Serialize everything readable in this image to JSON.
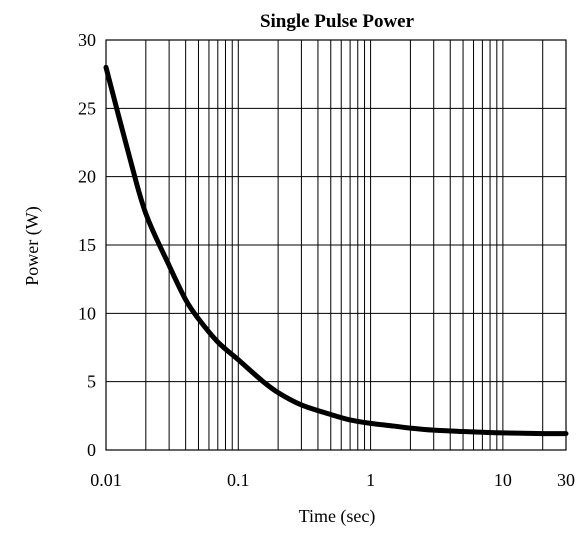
{
  "chart_data": {
    "type": "line",
    "title": "Single Pulse Power",
    "xlabel": "Time (sec)",
    "ylabel": "Power  (W)",
    "xscale": "log",
    "xlim": [
      0.01,
      30
    ],
    "ylim": [
      0,
      30
    ],
    "grid": true,
    "x_ticks": [
      {
        "value": 0.01,
        "label": "0.01"
      },
      {
        "value": 0.1,
        "label": "0.1"
      },
      {
        "value": 1,
        "label": "1"
      },
      {
        "value": 10,
        "label": "10"
      },
      {
        "value": 30,
        "label": "30"
      }
    ],
    "y_ticks": [
      {
        "value": 0,
        "label": "0"
      },
      {
        "value": 5,
        "label": "5"
      },
      {
        "value": 10,
        "label": "10"
      },
      {
        "value": 15,
        "label": "15"
      },
      {
        "value": 20,
        "label": "20"
      },
      {
        "value": 25,
        "label": "25"
      },
      {
        "value": 30,
        "label": "30"
      }
    ],
    "series": [
      {
        "x": [
          0.01,
          0.015,
          0.02,
          0.03,
          0.04,
          0.05,
          0.07,
          0.1,
          0.15,
          0.2,
          0.3,
          0.5,
          0.7,
          1,
          1.5,
          2,
          3,
          5,
          7,
          10,
          20,
          30
        ],
        "y": [
          28,
          21.5,
          17.3,
          13.5,
          11,
          9.6,
          7.9,
          6.6,
          5.1,
          4.2,
          3.3,
          2.6,
          2.2,
          1.95,
          1.75,
          1.6,
          1.45,
          1.35,
          1.3,
          1.25,
          1.2,
          1.2
        ]
      }
    ],
    "colors": {
      "line": "#000000",
      "grid": "#000000",
      "background": "#ffffff"
    }
  }
}
